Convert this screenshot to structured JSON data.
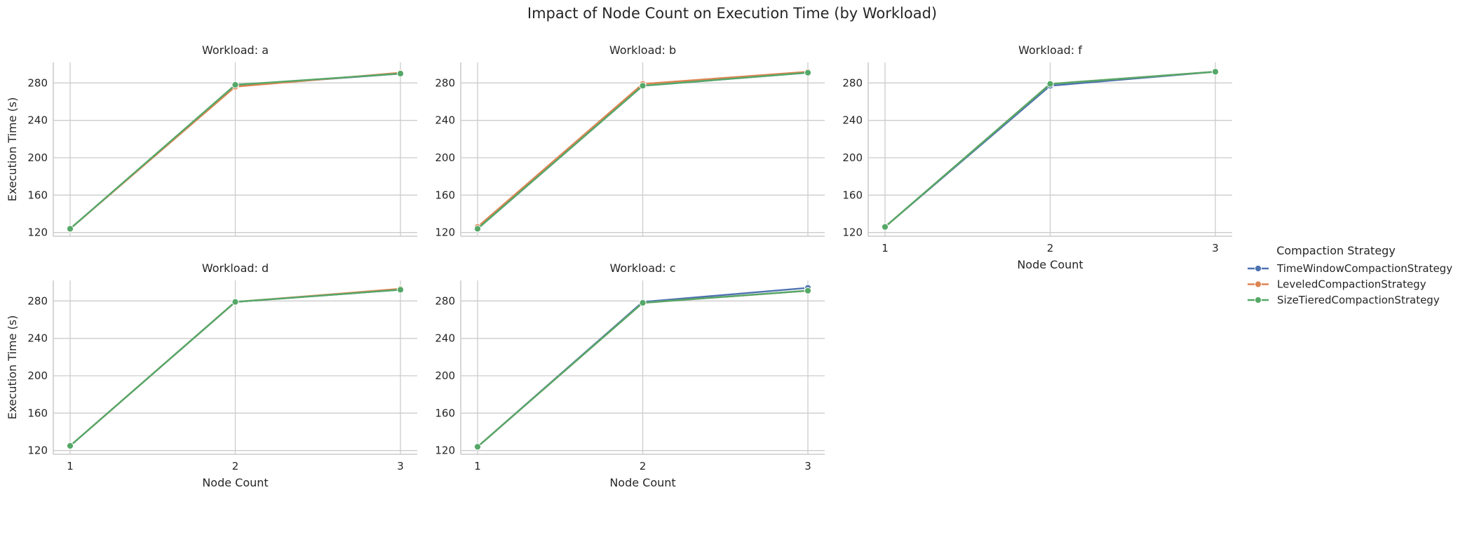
{
  "figure": {
    "title": "Impact of Node Count on Execution Time (by Workload)"
  },
  "legend": {
    "title": "Compaction Strategy",
    "placement": "right-center"
  },
  "chart_data": [
    {
      "type": "line",
      "title": "Workload: a",
      "xlabel": "",
      "ylabel": "Execution Time (s)",
      "x": [
        1,
        2,
        3
      ],
      "xticks": [
        "1",
        "2",
        "3"
      ],
      "yticks": [
        "120",
        "160",
        "200",
        "240",
        "280"
      ],
      "ylim": [
        116,
        302
      ],
      "grid": true,
      "series": [
        {
          "name": "TimeWindowCompactionStrategy",
          "color": "#4c72b0",
          "values": [
            124,
            277,
            290
          ]
        },
        {
          "name": "LeveledCompactionStrategy",
          "color": "#dd8452",
          "values": [
            124,
            276,
            291
          ]
        },
        {
          "name": "SizeTieredCompactionStrategy",
          "color": "#55a868",
          "values": [
            124,
            278,
            290
          ]
        }
      ]
    },
    {
      "type": "line",
      "title": "Workload: b",
      "xlabel": "",
      "ylabel": "",
      "x": [
        1,
        2,
        3
      ],
      "xticks": [
        "1",
        "2",
        "3"
      ],
      "yticks": [
        "120",
        "160",
        "200",
        "240",
        "280"
      ],
      "ylim": [
        116,
        302
      ],
      "grid": true,
      "series": [
        {
          "name": "TimeWindowCompactionStrategy",
          "color": "#4c72b0",
          "values": [
            124,
            277,
            291
          ]
        },
        {
          "name": "LeveledCompactionStrategy",
          "color": "#dd8452",
          "values": [
            126,
            279,
            292
          ]
        },
        {
          "name": "SizeTieredCompactionStrategy",
          "color": "#55a868",
          "values": [
            124,
            277,
            291
          ]
        }
      ]
    },
    {
      "type": "line",
      "title": "Workload: f",
      "xlabel": "Node Count",
      "ylabel": "",
      "x": [
        1,
        2,
        3
      ],
      "xticks": [
        "1",
        "2",
        "3"
      ],
      "yticks": [
        "120",
        "160",
        "200",
        "240",
        "280"
      ],
      "ylim": [
        116,
        302
      ],
      "grid": true,
      "series": [
        {
          "name": "TimeWindowCompactionStrategy",
          "color": "#4c72b0",
          "values": [
            126,
            277,
            292
          ]
        },
        {
          "name": "LeveledCompactionStrategy",
          "color": "#dd8452",
          "values": [
            126,
            279,
            292
          ]
        },
        {
          "name": "SizeTieredCompactionStrategy",
          "color": "#55a868",
          "values": [
            126,
            279,
            292
          ]
        }
      ]
    },
    {
      "type": "line",
      "title": "Workload: d",
      "xlabel": "Node Count",
      "ylabel": "Execution Time (s)",
      "x": [
        1,
        2,
        3
      ],
      "xticks": [
        "1",
        "2",
        "3"
      ],
      "yticks": [
        "120",
        "160",
        "200",
        "240",
        "280"
      ],
      "ylim": [
        116,
        302
      ],
      "grid": true,
      "series": [
        {
          "name": "TimeWindowCompactionStrategy",
          "color": "#4c72b0",
          "values": [
            125,
            279,
            292
          ]
        },
        {
          "name": "LeveledCompactionStrategy",
          "color": "#dd8452",
          "values": [
            125,
            279,
            293
          ]
        },
        {
          "name": "SizeTieredCompactionStrategy",
          "color": "#55a868",
          "values": [
            125,
            279,
            292
          ]
        }
      ]
    },
    {
      "type": "line",
      "title": "Workload: c",
      "xlabel": "Node Count",
      "ylabel": "",
      "x": [
        1,
        2,
        3
      ],
      "xticks": [
        "1",
        "2",
        "3"
      ],
      "yticks": [
        "120",
        "160",
        "200",
        "240",
        "280"
      ],
      "ylim": [
        116,
        302
      ],
      "grid": true,
      "series": [
        {
          "name": "TimeWindowCompactionStrategy",
          "color": "#4c72b0",
          "values": [
            124,
            279,
            294
          ]
        },
        {
          "name": "LeveledCompactionStrategy",
          "color": "#dd8452",
          "values": [
            124,
            278,
            291
          ]
        },
        {
          "name": "SizeTieredCompactionStrategy",
          "color": "#55a868",
          "values": [
            124,
            278,
            291
          ]
        }
      ]
    }
  ]
}
